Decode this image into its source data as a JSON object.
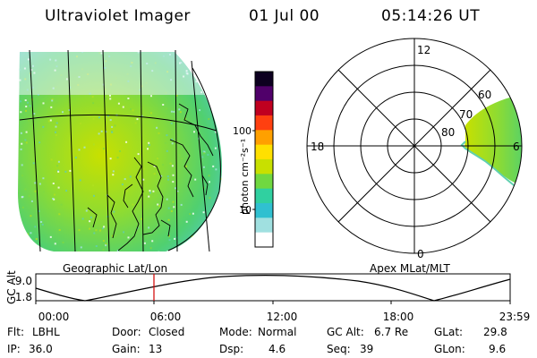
{
  "header": {
    "title": "Ultraviolet Imager",
    "date": "01 Jul 00",
    "time": "05:14:26 UT"
  },
  "panels": {
    "geo_label": "Geographic Lat/Lon",
    "apex_label": "Apex MLat/MLT"
  },
  "colorbar": {
    "unit_label": "photon cm⁻²s⁻¹",
    "ticks": [
      "100",
      "10"
    ],
    "colors": [
      "#0d0020",
      "#50006a",
      "#c00020",
      "#ff4010",
      "#ffa000",
      "#ffe000",
      "#c8e000",
      "#70d840",
      "#30d0a0",
      "#30c0d0",
      "#a0e0e0",
      "#ffffff"
    ]
  },
  "polar": {
    "mlt_labels": [
      "12",
      "18",
      "6",
      "0"
    ],
    "lat_labels": [
      "60",
      "70",
      "80"
    ]
  },
  "track": {
    "axis_title": "GC Alt",
    "y_ticks": [
      "9.0",
      "1.8"
    ],
    "x_ticks": [
      "00:00",
      "06:00",
      "12:00",
      "18:00",
      "23:59"
    ],
    "current_marker_color": "#d00000"
  },
  "status": {
    "flt_label": "Flt:",
    "flt_value": "LBHL",
    "ip_label": "IP:",
    "ip_value": "36.0",
    "door_label": "Door:",
    "door_value": "Closed",
    "gain_label": "Gain:",
    "gain_value": "13",
    "mode_label": "Mode:",
    "mode_value": "Normal",
    "dsp_label": "Dsp:",
    "dsp_value": "4.6",
    "gcalt_label": "GC Alt:",
    "gcalt_value": "6.7 Re",
    "seq_label": "Seq:",
    "seq_value": "39",
    "glat_label": "GLat:",
    "glat_value": "29.8",
    "glon_label": "GLon:",
    "glon_value": "9.6"
  }
}
